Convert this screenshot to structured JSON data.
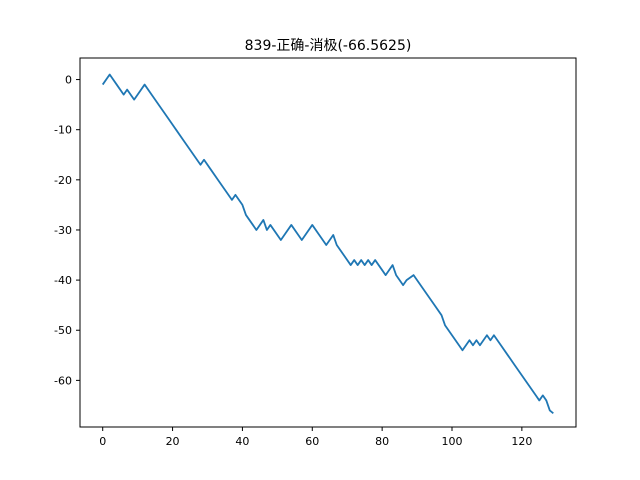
{
  "chart_data": {
    "type": "line",
    "title": "839-正确-消极(-66.5625)",
    "xlabel": "",
    "ylabel": "",
    "xlim": [
      -6.5,
      135.5
    ],
    "ylim": [
      -69.3,
      4.3
    ],
    "xticks": [
      0,
      20,
      40,
      60,
      80,
      100,
      120
    ],
    "yticks": [
      0,
      -10,
      -20,
      -30,
      -40,
      -50,
      -60
    ],
    "grid": false,
    "line_color": "#1f77b4",
    "series": [
      {
        "points": [
          [
            0,
            -1
          ],
          [
            2,
            1
          ],
          [
            4,
            -1
          ],
          [
            6,
            -3
          ],
          [
            7,
            -2
          ],
          [
            9,
            -4
          ],
          [
            10,
            -3
          ],
          [
            12,
            -1
          ],
          [
            14,
            -3
          ],
          [
            16,
            -5
          ],
          [
            18,
            -7
          ],
          [
            19,
            -8
          ],
          [
            21,
            -10
          ],
          [
            23,
            -12
          ],
          [
            25,
            -14
          ],
          [
            27,
            -16
          ],
          [
            28,
            -17
          ],
          [
            29,
            -16
          ],
          [
            31,
            -18
          ],
          [
            33,
            -20
          ],
          [
            35,
            -22
          ],
          [
            37,
            -24
          ],
          [
            38,
            -23
          ],
          [
            40,
            -25
          ],
          [
            41,
            -27
          ],
          [
            43,
            -29
          ],
          [
            44,
            -30
          ],
          [
            46,
            -28
          ],
          [
            47,
            -30
          ],
          [
            48,
            -29
          ],
          [
            51,
            -32
          ],
          [
            52,
            -31
          ],
          [
            54,
            -29
          ],
          [
            56,
            -31
          ],
          [
            57,
            -32
          ],
          [
            58,
            -31
          ],
          [
            60,
            -29
          ],
          [
            62,
            -31
          ],
          [
            64,
            -33
          ],
          [
            66,
            -31
          ],
          [
            67,
            -33
          ],
          [
            69,
            -35
          ],
          [
            71,
            -37
          ],
          [
            72,
            -36
          ],
          [
            73,
            -37
          ],
          [
            74,
            -36
          ],
          [
            75,
            -37
          ],
          [
            76,
            -36
          ],
          [
            77,
            -37
          ],
          [
            78,
            -36
          ],
          [
            80,
            -38
          ],
          [
            81,
            -39
          ],
          [
            83,
            -37
          ],
          [
            84,
            -39
          ],
          [
            86,
            -41
          ],
          [
            87,
            -40
          ],
          [
            89,
            -39
          ],
          [
            91,
            -41
          ],
          [
            93,
            -43
          ],
          [
            95,
            -45
          ],
          [
            97,
            -47
          ],
          [
            98,
            -49
          ],
          [
            100,
            -51
          ],
          [
            102,
            -53
          ],
          [
            103,
            -54
          ],
          [
            105,
            -52
          ],
          [
            106,
            -53
          ],
          [
            107,
            -52
          ],
          [
            108,
            -53
          ],
          [
            110,
            -51
          ],
          [
            111,
            -52
          ],
          [
            112,
            -51
          ],
          [
            114,
            -53
          ],
          [
            116,
            -55
          ],
          [
            118,
            -57
          ],
          [
            120,
            -59
          ],
          [
            122,
            -61
          ],
          [
            124,
            -63
          ],
          [
            125,
            -64
          ],
          [
            126,
            -63
          ],
          [
            127,
            -64
          ],
          [
            128,
            -66
          ],
          [
            129,
            -66.5625
          ]
        ]
      }
    ]
  }
}
